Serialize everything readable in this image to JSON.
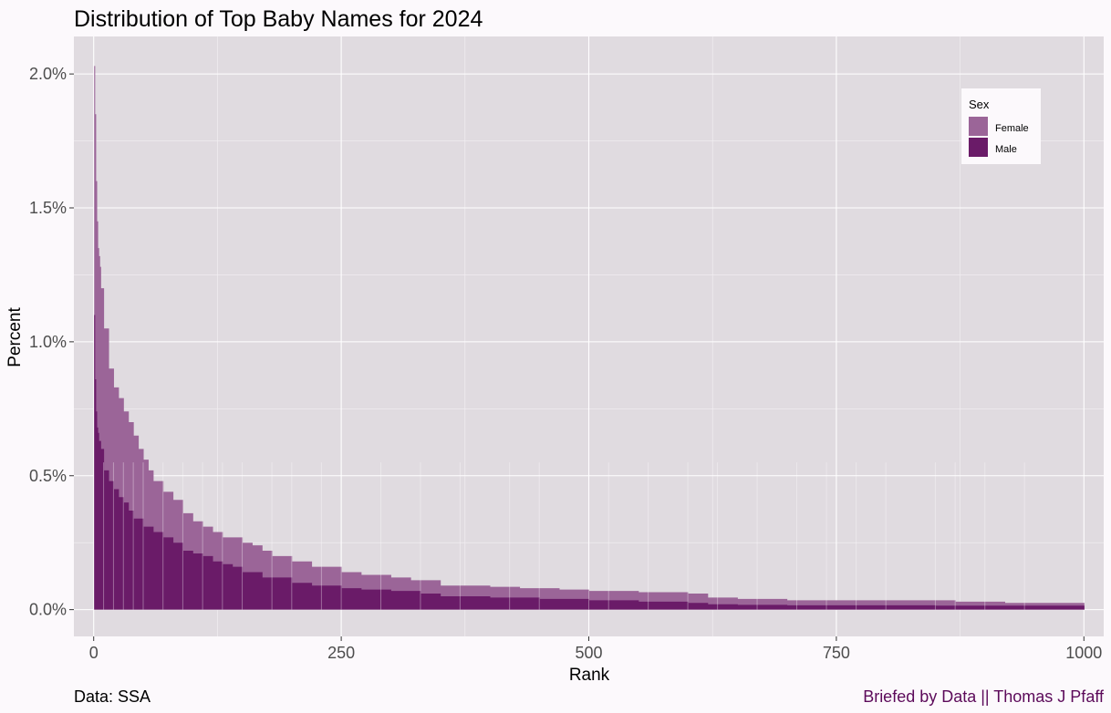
{
  "chart_data": {
    "type": "bar",
    "title": "Distribution of Top Baby Names for 2024",
    "xlabel": "Rank",
    "ylabel": "Percent",
    "xlim": [
      -20,
      1020
    ],
    "ylim": [
      -0.1,
      2.14
    ],
    "x_ticks": [
      0,
      250,
      500,
      750,
      1000
    ],
    "x_tick_labels": [
      "0",
      "250",
      "500",
      "750",
      "1000"
    ],
    "y_ticks": [
      0,
      0.5,
      1.0,
      1.5,
      2.0
    ],
    "y_tick_labels": [
      "0.0%",
      "0.5%",
      "1.0%",
      "1.5%",
      "2.0%"
    ],
    "grid": true,
    "legend": {
      "title": "Sex",
      "position": "top-right",
      "entries": [
        {
          "label": "Female",
          "color": "#9b6598"
        },
        {
          "label": "Male",
          "color": "#6a1b68"
        }
      ]
    },
    "series": [
      {
        "name": "Female",
        "color": "#9b6598",
        "points": [
          [
            1,
            2.03
          ],
          [
            2,
            1.85
          ],
          [
            3,
            1.6
          ],
          [
            4,
            1.45
          ],
          [
            5,
            1.35
          ],
          [
            6,
            1.32
          ],
          [
            7,
            1.28
          ],
          [
            10,
            1.2
          ],
          [
            15,
            1.05
          ],
          [
            20,
            0.9
          ],
          [
            25,
            0.83
          ],
          [
            30,
            0.79
          ],
          [
            35,
            0.74
          ],
          [
            40,
            0.7
          ],
          [
            45,
            0.65
          ],
          [
            50,
            0.6
          ],
          [
            55,
            0.56
          ],
          [
            60,
            0.52
          ],
          [
            70,
            0.48
          ],
          [
            80,
            0.44
          ],
          [
            90,
            0.41
          ],
          [
            100,
            0.36
          ],
          [
            110,
            0.33
          ],
          [
            120,
            0.31
          ],
          [
            130,
            0.29
          ],
          [
            150,
            0.27
          ],
          [
            160,
            0.25
          ],
          [
            170,
            0.24
          ],
          [
            180,
            0.22
          ],
          [
            200,
            0.2
          ],
          [
            220,
            0.18
          ],
          [
            250,
            0.16
          ],
          [
            270,
            0.14
          ],
          [
            300,
            0.13
          ],
          [
            320,
            0.12
          ],
          [
            350,
            0.11
          ],
          [
            400,
            0.09
          ],
          [
            430,
            0.085
          ],
          [
            470,
            0.08
          ],
          [
            500,
            0.075
          ],
          [
            550,
            0.07
          ],
          [
            600,
            0.065
          ],
          [
            620,
            0.06
          ],
          [
            650,
            0.045
          ],
          [
            700,
            0.04
          ],
          [
            870,
            0.035
          ],
          [
            920,
            0.03
          ],
          [
            1000,
            0.025
          ]
        ]
      },
      {
        "name": "Male",
        "color": "#6a1b68",
        "points": [
          [
            1,
            1.1
          ],
          [
            2,
            0.86
          ],
          [
            3,
            0.74
          ],
          [
            4,
            0.68
          ],
          [
            5,
            0.66
          ],
          [
            7,
            0.63
          ],
          [
            10,
            0.6
          ],
          [
            15,
            0.52
          ],
          [
            20,
            0.48
          ],
          [
            25,
            0.45
          ],
          [
            30,
            0.42
          ],
          [
            35,
            0.4
          ],
          [
            40,
            0.37
          ],
          [
            50,
            0.34
          ],
          [
            60,
            0.31
          ],
          [
            70,
            0.29
          ],
          [
            80,
            0.27
          ],
          [
            90,
            0.25
          ],
          [
            100,
            0.22
          ],
          [
            110,
            0.21
          ],
          [
            120,
            0.2
          ],
          [
            130,
            0.18
          ],
          [
            140,
            0.17
          ],
          [
            150,
            0.16
          ],
          [
            170,
            0.14
          ],
          [
            200,
            0.12
          ],
          [
            220,
            0.1
          ],
          [
            250,
            0.09
          ],
          [
            270,
            0.08
          ],
          [
            300,
            0.075
          ],
          [
            330,
            0.07
          ],
          [
            350,
            0.06
          ],
          [
            400,
            0.05
          ],
          [
            450,
            0.045
          ],
          [
            500,
            0.04
          ],
          [
            550,
            0.035
          ],
          [
            600,
            0.03
          ],
          [
            620,
            0.025
          ],
          [
            650,
            0.02
          ],
          [
            700,
            0.018
          ],
          [
            850,
            0.016
          ],
          [
            1000,
            0.015
          ]
        ]
      }
    ]
  },
  "caption": {
    "source": "Data: SSA",
    "credit": "Briefed by Data || Thomas J Pfaff",
    "credit_color": "#5c0a5a"
  }
}
